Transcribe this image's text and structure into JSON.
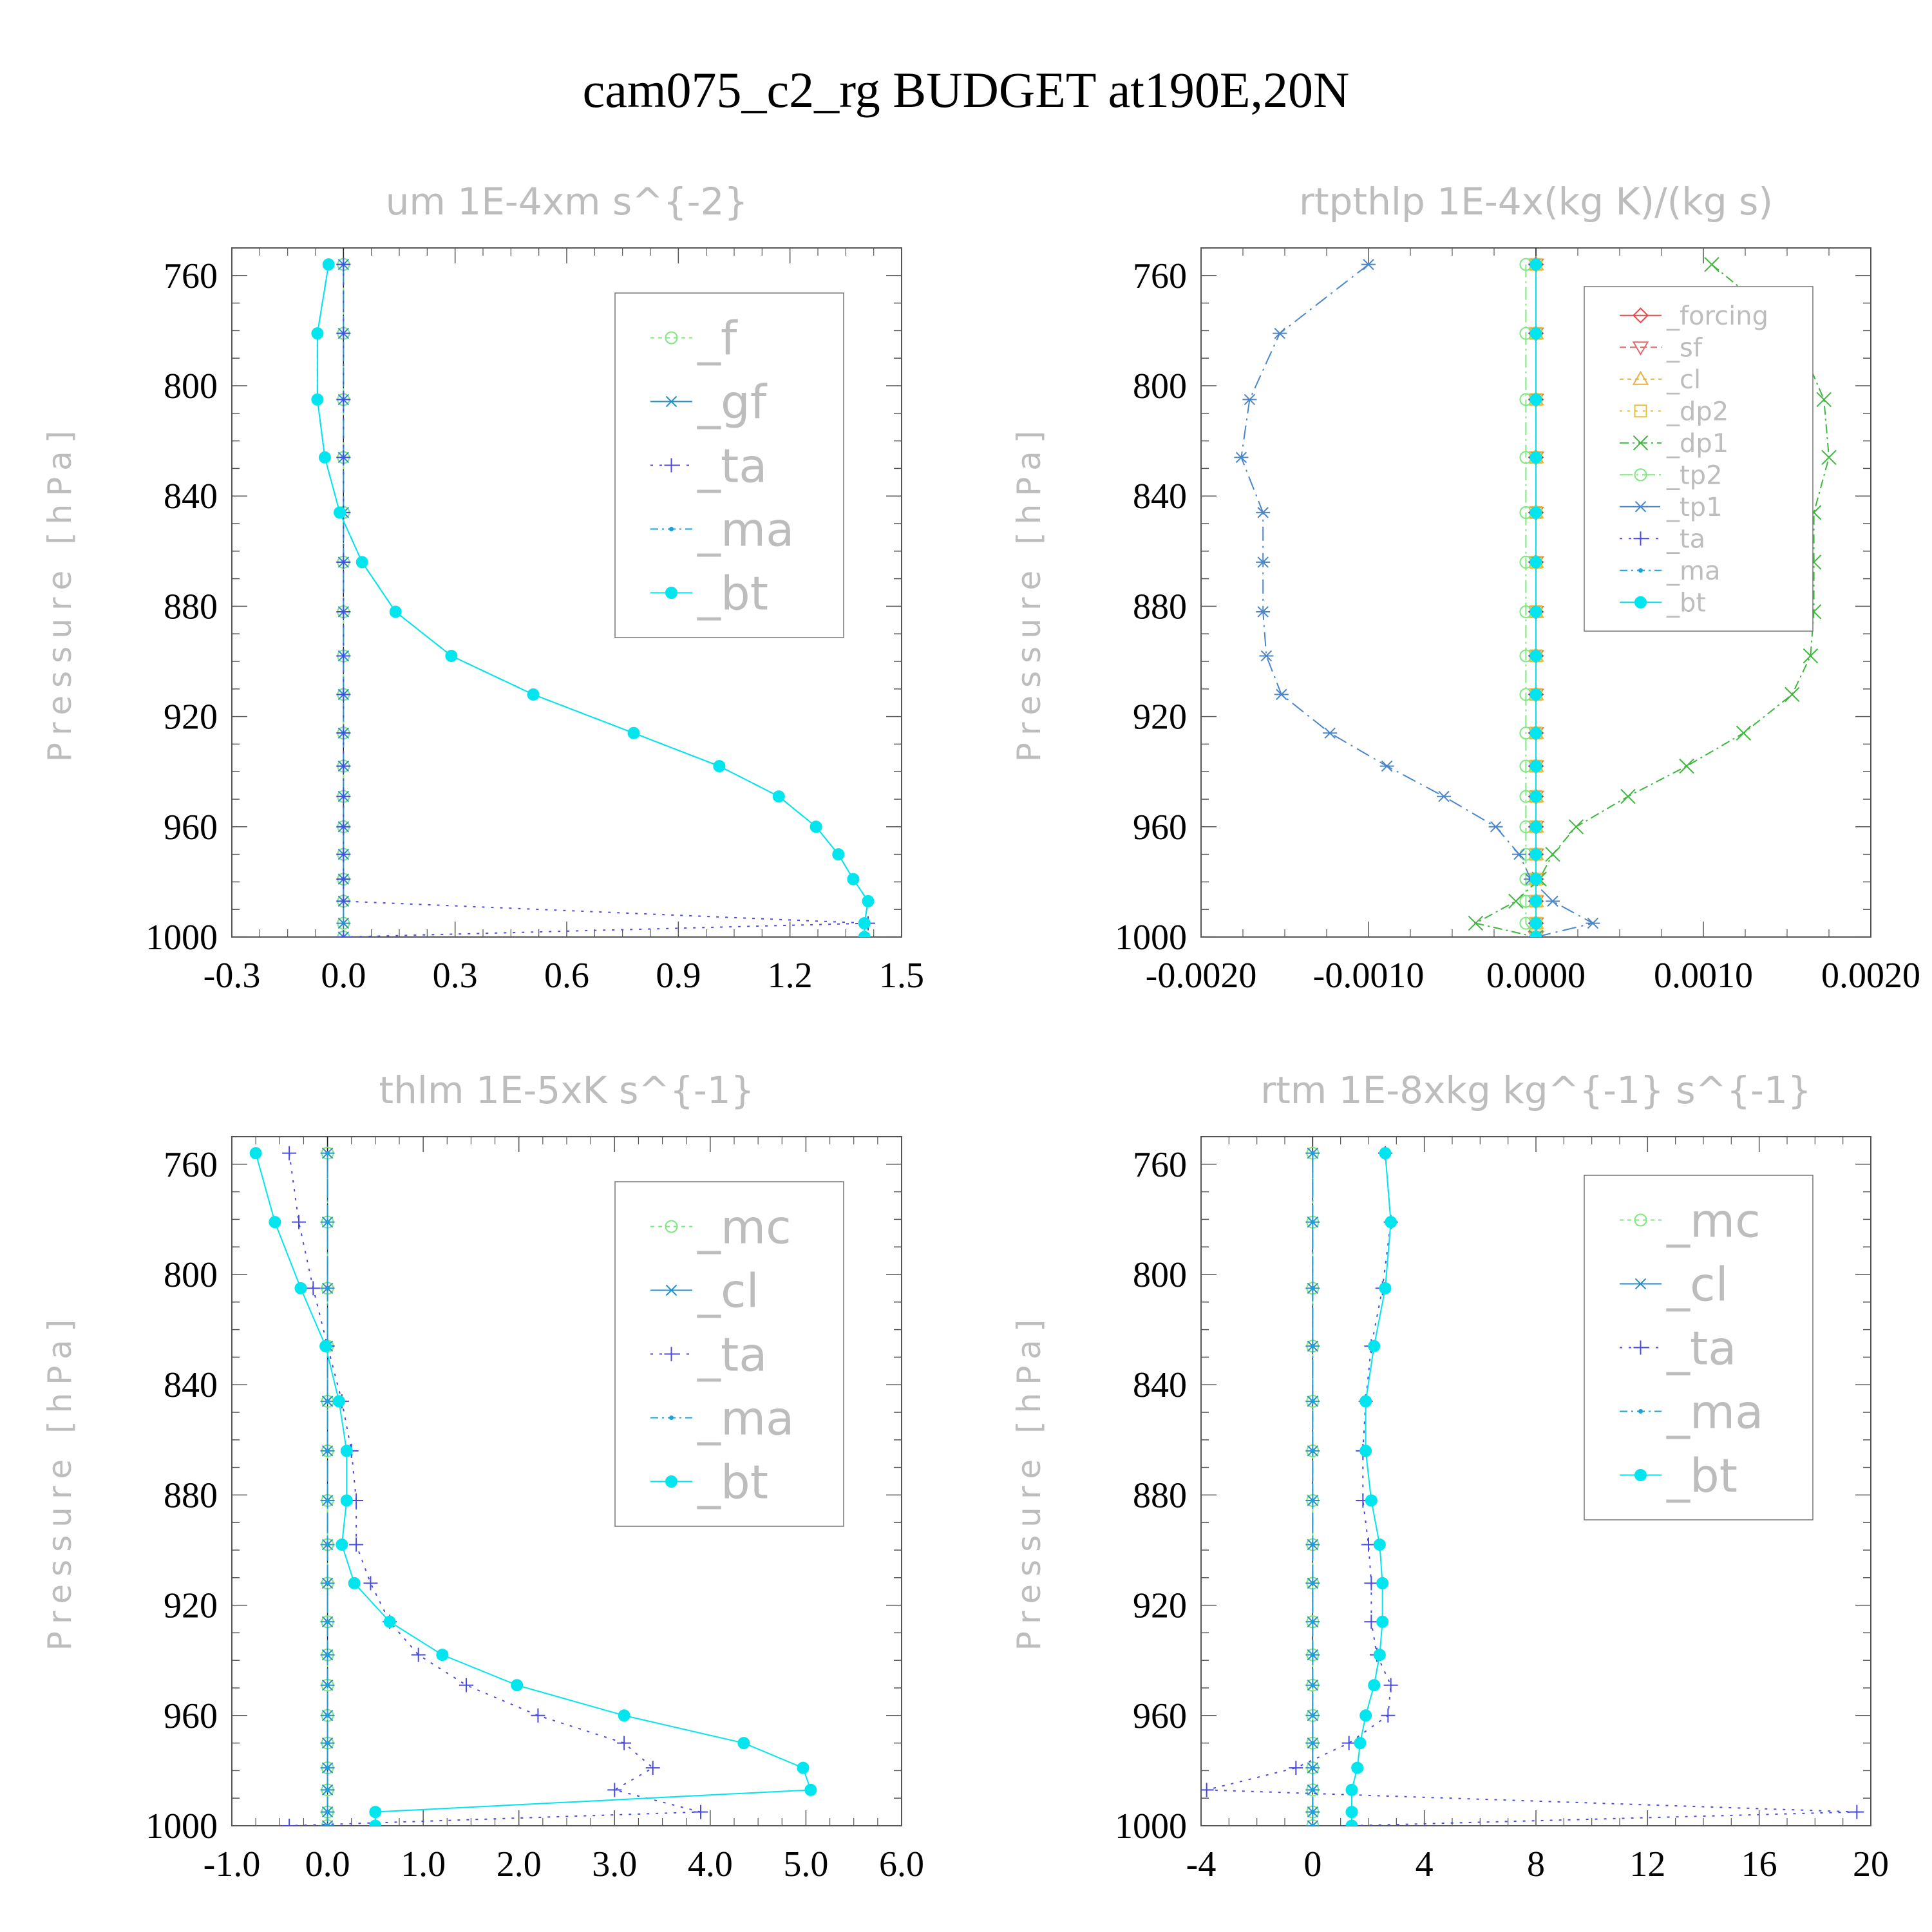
{
  "title": "cam075_c2_rg  BUDGET at190E,20N",
  "colors": {
    "f": "#7de87d",
    "gf": "#2a8fc7",
    "ta": "#4a4ae0",
    "ma": "#1aa0d8",
    "bt": "#00e5ee",
    "forcing": "#e04a4a",
    "sf": "#e06a6a",
    "cl_orange": "#e8b040",
    "dp2": "#e8c040",
    "dp1": "#3cb83c",
    "tp2": "#7de87d",
    "tp1": "#4a86c8",
    "mc": "#7de87d",
    "cl": "#2a8fc7"
  },
  "chart_data": [
    {
      "type": "line",
      "title": "um  1E-4xm s^{-2}",
      "ylabel": "Pressure [hPa]",
      "xlim": [
        -0.3,
        1.5
      ],
      "xticks": [
        -0.3,
        0.0,
        0.3,
        0.6,
        0.9,
        1.2,
        1.5
      ],
      "xtick_labels": [
        "-0.3",
        "0.0",
        "0.3",
        "0.6",
        "0.9",
        "1.2",
        "1.5"
      ],
      "ylim": [
        1000,
        750
      ],
      "yticks": [
        760,
        800,
        840,
        880,
        920,
        960,
        1000
      ],
      "legend": {
        "position": "top-right",
        "size": "large"
      },
      "pressure": [
        756,
        781,
        805,
        826,
        846,
        864,
        882,
        898,
        912,
        926,
        938,
        949,
        960,
        970,
        979,
        987,
        995,
        1000
      ],
      "series": [
        {
          "name": "_f",
          "color_key": "f",
          "marker": "circle-open",
          "dash": "6,6",
          "values": [
            0,
            0,
            0,
            0,
            0,
            0,
            0,
            0,
            0,
            0,
            0,
            0,
            0,
            0,
            0,
            0,
            0,
            0
          ]
        },
        {
          "name": "_gf",
          "color_key": "gf",
          "marker": "asterisk",
          "dash": "30,10",
          "values": [
            0,
            0,
            0,
            0,
            0,
            0,
            0,
            0,
            0,
            0,
            0,
            0,
            0,
            0,
            0,
            0,
            0,
            0
          ]
        },
        {
          "name": "_ta",
          "color_key": "ta",
          "marker": "plus",
          "dash": "4,10",
          "values": [
            0,
            0,
            0,
            0,
            0,
            0,
            0,
            0,
            0,
            0,
            0,
            0,
            0,
            0,
            0,
            0,
            1.41,
            0
          ]
        },
        {
          "name": "_ma",
          "color_key": "ma",
          "marker": "dot",
          "dash": "12,6,3,6",
          "values": [
            -0.04,
            -0.07,
            -0.07,
            -0.05,
            -0.01,
            0.05,
            0.14,
            0.29,
            0.51,
            0.78,
            1.01,
            1.17,
            1.27,
            1.33,
            1.37,
            1.41,
            1.4,
            1.4
          ]
        },
        {
          "name": "_bt",
          "color_key": "bt",
          "marker": "dot-filled",
          "dash": "",
          "values": [
            -0.04,
            -0.07,
            -0.07,
            -0.05,
            -0.01,
            0.05,
            0.14,
            0.29,
            0.51,
            0.78,
            1.01,
            1.17,
            1.27,
            1.33,
            1.37,
            1.41,
            1.4,
            1.4
          ]
        }
      ]
    },
    {
      "type": "line",
      "title": "rtpthlp  1E-4x(kg K)/(kg s)",
      "ylabel": "Pressure [hPa]",
      "xlim": [
        -0.002,
        0.002
      ],
      "xticks": [
        -0.002,
        -0.001,
        0.0,
        0.001,
        0.002
      ],
      "xtick_labels": [
        "-0.0020",
        "-0.0010",
        "0.0000",
        "0.0010",
        "0.0020"
      ],
      "ylim": [
        1000,
        750
      ],
      "yticks": [
        760,
        800,
        840,
        880,
        920,
        960,
        1000
      ],
      "legend": {
        "position": "top-right",
        "size": "small"
      },
      "pressure": [
        756,
        781,
        805,
        826,
        846,
        864,
        882,
        898,
        912,
        926,
        938,
        949,
        960,
        970,
        979,
        987,
        995,
        1000
      ],
      "series": [
        {
          "name": "_forcing",
          "color_key": "forcing",
          "marker": "diamond",
          "dash": "",
          "values": [
            0,
            0,
            0,
            0,
            0,
            0,
            0,
            0,
            0,
            0,
            0,
            0,
            0,
            0,
            0,
            0,
            0,
            0
          ]
        },
        {
          "name": "_sf",
          "color_key": "sf",
          "marker": "triangle-down",
          "dash": "10,6",
          "values": [
            0,
            0,
            0,
            0,
            0,
            0,
            0,
            0,
            0,
            0,
            0,
            0,
            0,
            0,
            0,
            0,
            0,
            0
          ]
        },
        {
          "name": "_cl",
          "color_key": "cl_orange",
          "marker": "triangle-up",
          "dash": "6,6",
          "values": [
            0,
            0,
            0,
            0,
            0,
            0,
            0,
            0,
            0,
            0,
            0,
            0,
            0,
            0,
            0,
            0,
            0,
            0
          ]
        },
        {
          "name": "_dp2",
          "color_key": "dp2",
          "marker": "square-open",
          "dash": "4,8",
          "values": [
            0,
            0,
            0,
            0,
            0,
            0,
            0,
            0,
            0,
            0,
            0,
            0,
            0,
            0,
            0,
            0,
            0,
            0
          ]
        },
        {
          "name": "_dp1",
          "color_key": "dp1",
          "marker": "cross",
          "dash": "14,6,3,6",
          "values": [
            0.00105,
            0.00155,
            0.00172,
            0.00175,
            0.00166,
            0.00166,
            0.00166,
            0.00164,
            0.00153,
            0.00124,
            0.0009,
            0.00055,
            0.00024,
            0.0001,
            2e-05,
            -0.00012,
            -0.00036,
            0
          ]
        },
        {
          "name": "_tp2",
          "color_key": "tp2",
          "marker": "circle-open",
          "dash": "20,6,3,6",
          "values": [
            -6e-05,
            -6e-05,
            -6e-05,
            -6e-05,
            -6e-05,
            -6e-05,
            -6e-05,
            -6e-05,
            -6e-05,
            -6e-05,
            -6e-05,
            -6e-05,
            -6e-05,
            -6e-05,
            -6e-05,
            -6e-05,
            -6e-05,
            0
          ]
        },
        {
          "name": "_tp1",
          "color_key": "tp1",
          "marker": "asterisk",
          "dash": "22,8,3,8",
          "values": [
            -0.001,
            -0.00153,
            -0.00171,
            -0.00176,
            -0.00163,
            -0.00163,
            -0.00163,
            -0.00161,
            -0.00152,
            -0.00123,
            -0.00089,
            -0.00055,
            -0.00024,
            -0.0001,
            -3e-05,
            0.0001,
            0.00034,
            0
          ]
        },
        {
          "name": "_ta",
          "color_key": "ta",
          "marker": "plus",
          "dash": "4,10",
          "values": [
            0,
            0,
            0,
            0,
            0,
            0,
            0,
            0,
            0,
            0,
            0,
            0,
            0,
            0,
            0,
            0,
            0,
            0
          ]
        },
        {
          "name": "_ma",
          "color_key": "ma",
          "marker": "dot",
          "dash": "12,6,3,6",
          "values": [
            0,
            0,
            0,
            0,
            0,
            0,
            0,
            0,
            0,
            0,
            0,
            0,
            0,
            0,
            0,
            0,
            0,
            0
          ]
        },
        {
          "name": "_bt",
          "color_key": "bt",
          "marker": "dot-filled",
          "dash": "",
          "values": [
            0,
            0,
            0,
            0,
            0,
            0,
            0,
            0,
            0,
            0,
            0,
            0,
            0,
            0,
            0,
            0,
            0,
            0
          ]
        }
      ]
    },
    {
      "type": "line",
      "title": "thlm  1E-5xK s^{-1}",
      "ylabel": "Pressure [hPa]",
      "xlim": [
        -1.0,
        6.0
      ],
      "xticks": [
        -1.0,
        0.0,
        1.0,
        2.0,
        3.0,
        4.0,
        5.0,
        6.0
      ],
      "xtick_labels": [
        "-1.0",
        "0.0",
        "1.0",
        "2.0",
        "3.0",
        "4.0",
        "5.0",
        "6.0"
      ],
      "ylim": [
        1000,
        750
      ],
      "yticks": [
        760,
        800,
        840,
        880,
        920,
        960,
        1000
      ],
      "legend": {
        "position": "top-right",
        "size": "large"
      },
      "pressure": [
        756,
        781,
        805,
        826,
        846,
        864,
        882,
        898,
        912,
        926,
        938,
        949,
        960,
        970,
        979,
        987,
        995,
        1000
      ],
      "series": [
        {
          "name": "_mc",
          "color_key": "mc",
          "marker": "circle-open",
          "dash": "6,6",
          "values": [
            0,
            0,
            0,
            0,
            0,
            0,
            0,
            0,
            0,
            0,
            0,
            0,
            0,
            0,
            0,
            0,
            0,
            0
          ]
        },
        {
          "name": "_cl",
          "color_key": "cl",
          "marker": "asterisk",
          "dash": "30,10",
          "values": [
            0,
            0,
            0,
            0,
            0,
            0,
            0,
            0,
            0,
            0,
            0,
            0,
            0,
            0,
            0,
            0,
            0,
            0
          ]
        },
        {
          "name": "_ta",
          "color_key": "ta",
          "marker": "plus",
          "dash": "4,10",
          "values": [
            -0.4,
            -0.3,
            -0.15,
            0.0,
            0.15,
            0.25,
            0.3,
            0.3,
            0.45,
            0.65,
            0.95,
            1.45,
            2.2,
            3.1,
            3.4,
            3.0,
            3.9,
            -0.4
          ]
        },
        {
          "name": "_ma",
          "color_key": "ma",
          "marker": "dot",
          "dash": "12,6,3,6",
          "values": [
            0,
            0,
            0,
            0,
            0,
            0,
            0,
            0,
            0,
            0,
            0,
            0,
            0,
            0,
            0,
            0,
            0,
            0
          ]
        },
        {
          "name": "_bt",
          "color_key": "bt",
          "marker": "dot-filled",
          "dash": "",
          "values": [
            -0.75,
            -0.55,
            -0.28,
            -0.02,
            0.12,
            0.2,
            0.2,
            0.15,
            0.28,
            0.65,
            1.2,
            1.98,
            3.1,
            4.35,
            4.97,
            5.05,
            0.5,
            0.5
          ]
        }
      ]
    },
    {
      "type": "line",
      "title": "rtm  1E-8xkg kg^{-1} s^{-1}",
      "ylabel": "Pressure [hPa]",
      "xlim": [
        -4,
        20
      ],
      "xticks": [
        -4,
        0,
        4,
        8,
        12,
        16,
        20
      ],
      "xtick_labels": [
        "-4",
        "0",
        "4",
        "8",
        "12",
        "16",
        "20"
      ],
      "ylim": [
        1000,
        750
      ],
      "yticks": [
        760,
        800,
        840,
        880,
        920,
        960,
        1000
      ],
      "legend": {
        "position": "top-right",
        "size": "large"
      },
      "pressure": [
        756,
        781,
        805,
        826,
        846,
        864,
        882,
        898,
        912,
        926,
        938,
        949,
        960,
        970,
        979,
        987,
        995,
        1000
      ],
      "series": [
        {
          "name": "_mc",
          "color_key": "mc",
          "marker": "circle-open",
          "dash": "6,6",
          "values": [
            0,
            0,
            0,
            0,
            0,
            0,
            0,
            0,
            0,
            0,
            0,
            0,
            0,
            0,
            0,
            0,
            0,
            0
          ]
        },
        {
          "name": "_cl",
          "color_key": "cl",
          "marker": "asterisk",
          "dash": "30,10",
          "values": [
            0,
            0,
            0,
            0,
            0,
            0,
            0,
            0,
            0,
            0,
            0,
            0,
            0,
            0,
            0,
            0,
            0,
            0
          ]
        },
        {
          "name": "_ta",
          "color_key": "ta",
          "marker": "plus",
          "dash": "4,10",
          "values": [
            2.6,
            2.8,
            2.5,
            2.1,
            1.9,
            1.8,
            1.8,
            2.0,
            2.1,
            2.1,
            2.3,
            2.8,
            2.7,
            1.3,
            -0.6,
            -3.8,
            19.5,
            1.4
          ]
        },
        {
          "name": "_ma",
          "color_key": "ma",
          "marker": "dot",
          "dash": "12,6,3,6",
          "values": [
            0,
            0,
            0,
            0,
            0,
            0,
            0,
            0,
            0,
            0,
            0,
            0,
            0,
            0,
            0,
            0,
            0,
            0
          ]
        },
        {
          "name": "_bt",
          "color_key": "bt",
          "marker": "dot-filled",
          "dash": "",
          "values": [
            2.6,
            2.8,
            2.6,
            2.2,
            1.9,
            1.9,
            2.1,
            2.4,
            2.5,
            2.5,
            2.4,
            2.2,
            1.9,
            1.7,
            1.6,
            1.4,
            1.4,
            1.4
          ]
        }
      ]
    }
  ]
}
